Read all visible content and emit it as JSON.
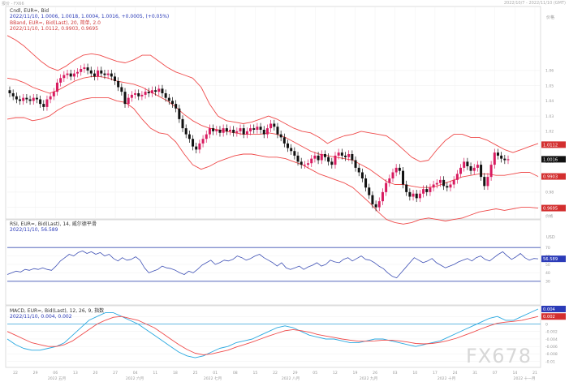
{
  "window": {
    "top_left_label": "报价 - FX66",
    "top_right_label": "2022/10/7 - 2022/11/10 (GMT)"
  },
  "price_panel": {
    "title": "Cndl, EUR=, Bid",
    "ohlc": "2022/11/10, 1.0006, 1.0018, 1.0004, 1.0016, +0.0005, (+0.05%)",
    "bband_title": "BBand, EUR=, Bid(Last), 20, 简单, 2.0",
    "bband_values": "2022/11/10, 1.0112, 0.9903, 0.9695",
    "price_unit": "价格",
    "yticks": [
      "1.06",
      "1.05",
      "1.04",
      "1.03",
      "1.02",
      "1.01",
      "1.00",
      "0.99",
      "0.98",
      "0.97"
    ],
    "badges": [
      {
        "value": "1.0112",
        "color": "#d32f2f"
      },
      {
        "value": "1.0016",
        "color": "#111111"
      },
      {
        "value": "0.9903",
        "color": "#d32f2f"
      },
      {
        "value": "0.9695",
        "color": "#d32f2f"
      }
    ],
    "bottom_tag": "价格"
  },
  "rsi_panel": {
    "title": "RSI, EUR=, Bid(Last), 14, 威尔德平滑",
    "value": "2022/11/10, 56.589",
    "unit": "USD",
    "yticks": [
      "70",
      "60",
      "50",
      "40",
      "30"
    ],
    "badge": {
      "value": "56.589",
      "color": "#2b3bb8"
    }
  },
  "macd_panel": {
    "title": "MACD, EUR=, Bid(Last), 12, 26, 9, 指数",
    "value": "2022/11/10, 0.004, 0.002",
    "yticks": [
      "0.002",
      "0",
      "-0.002",
      "-0.004",
      "-0.006",
      "-0.008",
      "-0.01"
    ],
    "badges": [
      {
        "value": "0.004",
        "color": "#2b3bb8"
      },
      {
        "value": "0.002",
        "color": "#d32f2f"
      }
    ]
  },
  "x_axis": {
    "days": [
      "22",
      "29",
      "06",
      "13",
      "20",
      "27",
      "04",
      "11",
      "18",
      "25",
      "01",
      "08",
      "15",
      "22",
      "29",
      "05",
      "12",
      "19",
      "26",
      "03",
      "10",
      "17",
      "24",
      "31",
      "07",
      "14",
      "21"
    ],
    "months": [
      "2022 五月",
      "2022 六月",
      "2022 七月",
      "2022 八月",
      "2022 九月",
      "2022 十月",
      "2022 十一月"
    ]
  },
  "watermark": "FX678",
  "colors": {
    "bull": "#d81b60",
    "bear": "#111111",
    "bband": "#ef4b4b",
    "rsi_line": "#3f51b5",
    "rsi_levels": "#3f51b5",
    "macd_line": "#29a8e0",
    "signal_line": "#ef4b4b"
  },
  "chart_data": {
    "type": "candlestick",
    "title": "Cndl, EUR=, Bid",
    "closes": [
      1.045,
      1.043,
      1.041,
      1.04,
      1.042,
      1.041,
      1.04,
      1.042,
      1.041,
      1.038,
      1.036,
      1.041,
      1.043,
      1.046,
      1.052,
      1.055,
      1.057,
      1.058,
      1.056,
      1.058,
      1.059,
      1.061,
      1.062,
      1.06,
      1.058,
      1.056,
      1.06,
      1.058,
      1.057,
      1.058,
      1.056,
      1.053,
      1.049,
      1.046,
      1.038,
      1.042,
      1.044,
      1.045,
      1.043,
      1.044,
      1.046,
      1.045,
      1.047,
      1.046,
      1.048,
      1.045,
      1.042,
      1.04,
      1.038,
      1.035,
      1.028,
      1.022,
      1.018,
      1.015,
      1.01,
      1.008,
      1.012,
      1.015,
      1.018,
      1.022,
      1.02,
      1.021,
      1.019,
      1.022,
      1.02,
      1.021,
      1.019,
      1.02,
      1.022,
      1.018,
      1.02,
      1.022,
      1.021,
      1.023,
      1.021,
      1.018,
      1.022,
      1.025,
      1.023,
      1.018,
      1.016,
      1.012,
      1.009,
      1.007,
      1.004,
      1.0,
      0.998,
      0.998,
      0.999,
      1.002,
      1.004,
      1.001,
      1.005,
      1.003,
      1.0,
      0.998,
      1.004,
      1.006,
      1.004,
      1.003,
      1.005,
      1.001,
      0.996,
      0.993,
      0.989,
      0.983,
      0.978,
      0.972,
      0.97,
      0.974,
      0.98,
      0.986,
      0.989,
      0.993,
      0.996,
      0.994,
      0.985,
      0.98,
      0.977,
      0.979,
      0.976,
      0.979,
      0.982,
      0.98,
      0.983,
      0.985,
      0.986,
      0.988,
      0.984,
      0.983,
      0.985,
      0.988,
      0.992,
      0.996,
      1.0,
      0.997,
      0.994,
      0.996,
      0.998,
      0.99,
      0.984,
      0.99,
      0.998,
      1.006,
      1.004,
      1.002,
      1.001,
      1.0016
    ],
    "bb_upper": [
      1.083,
      1.08,
      1.076,
      1.071,
      1.066,
      1.062,
      1.06,
      1.063,
      1.067,
      1.07,
      1.071,
      1.07,
      1.068,
      1.066,
      1.065,
      1.067,
      1.07,
      1.07,
      1.066,
      1.062,
      1.059,
      1.057,
      1.055,
      1.049,
      1.038,
      1.03,
      1.027,
      1.026,
      1.025,
      1.026,
      1.028,
      1.03,
      1.028,
      1.025,
      1.022,
      1.02,
      1.019,
      1.016,
      1.012,
      1.015,
      1.017,
      1.018,
      1.02,
      1.019,
      1.018,
      1.017,
      1.013,
      1.008,
      1.003,
      1.0,
      1.001,
      1.008,
      1.014,
      1.018,
      1.018,
      1.016,
      1.016,
      1.014,
      1.011,
      1.008,
      1.006,
      1.008,
      1.01,
      1.012
    ],
    "bb_mid": [
      1.055,
      1.054,
      1.052,
      1.049,
      1.047,
      1.045,
      1.047,
      1.05,
      1.053,
      1.055,
      1.056,
      1.056,
      1.055,
      1.053,
      1.052,
      1.051,
      1.049,
      1.046,
      1.043,
      1.04,
      1.036,
      1.031,
      1.027,
      1.024,
      1.022,
      1.021,
      1.02,
      1.019,
      1.018,
      1.018,
      1.018,
      1.019,
      1.018,
      1.016,
      1.013,
      1.01,
      1.007,
      1.005,
      1.004,
      1.003,
      1.002,
      1.001,
      0.998,
      0.995,
      0.991,
      0.987,
      0.985,
      0.985,
      0.984,
      0.983,
      0.983,
      0.984,
      0.986,
      0.988,
      0.99,
      0.991,
      0.992,
      0.992,
      0.991,
      0.991,
      0.992,
      0.993,
      0.993,
      0.9903
    ],
    "bb_lower": [
      1.028,
      1.029,
      1.029,
      1.027,
      1.028,
      1.03,
      1.034,
      1.037,
      1.039,
      1.041,
      1.042,
      1.042,
      1.042,
      1.04,
      1.039,
      1.035,
      1.028,
      1.022,
      1.019,
      1.018,
      1.013,
      1.005,
      0.998,
      0.995,
      0.997,
      1.0,
      1.002,
      1.004,
      1.005,
      1.005,
      1.004,
      1.003,
      1.003,
      1.002,
      1.0,
      0.998,
      0.995,
      0.992,
      0.99,
      0.988,
      0.986,
      0.983,
      0.978,
      0.973,
      0.967,
      0.962,
      0.96,
      0.959,
      0.96,
      0.962,
      0.963,
      0.962,
      0.961,
      0.962,
      0.963,
      0.965,
      0.967,
      0.968,
      0.969,
      0.968,
      0.969,
      0.97,
      0.97,
      0.9695
    ],
    "ylim": [
      0.965,
      1.085
    ],
    "rsi": [
      38,
      40,
      42,
      41,
      44,
      43,
      45,
      44,
      46,
      44,
      43,
      48,
      54,
      58,
      62,
      60,
      64,
      66,
      63,
      65,
      62,
      64,
      60,
      62,
      57,
      54,
      58,
      55,
      56,
      59,
      55,
      46,
      40,
      42,
      44,
      48,
      46,
      45,
      43,
      40,
      38,
      42,
      40,
      44,
      49,
      52,
      55,
      50,
      52,
      55,
      54,
      56,
      60,
      58,
      55,
      57,
      60,
      62,
      58,
      55,
      52,
      48,
      52,
      46,
      44,
      46,
      48,
      44,
      47,
      49,
      52,
      48,
      50,
      55,
      53,
      52,
      56,
      58,
      54,
      57,
      60,
      56,
      55,
      52,
      48,
      45,
      40,
      36,
      34,
      40,
      46,
      52,
      58,
      55,
      52,
      54,
      57,
      52,
      49,
      46,
      48,
      50,
      53,
      55,
      57,
      54,
      58,
      60,
      56,
      54,
      58,
      62,
      65,
      60,
      56,
      59,
      63,
      58,
      55,
      57,
      56.589
    ],
    "rsi_levels": [
      70,
      30
    ],
    "rsi_ylim": [
      25,
      75
    ],
    "macd": [
      -0.004,
      -0.0055,
      -0.0065,
      -0.007,
      -0.007,
      -0.0065,
      -0.006,
      -0.005,
      -0.003,
      -0.001,
      0.001,
      0.002,
      0.003,
      0.003,
      0.002,
      0.001,
      0.0,
      -0.0015,
      -0.003,
      -0.0045,
      -0.006,
      -0.0075,
      -0.0085,
      -0.009,
      -0.0085,
      -0.0075,
      -0.0065,
      -0.006,
      -0.005,
      -0.0045,
      -0.004,
      -0.003,
      -0.002,
      -0.001,
      -0.0005,
      -0.001,
      -0.002,
      -0.003,
      -0.0035,
      -0.004,
      -0.004,
      -0.0045,
      -0.005,
      -0.005,
      -0.0045,
      -0.004,
      -0.004,
      -0.0045,
      -0.005,
      -0.0055,
      -0.006,
      -0.0055,
      -0.005,
      -0.0045,
      -0.0035,
      -0.0025,
      -0.0015,
      -0.0005,
      0.0005,
      0.0015,
      0.002,
      0.001,
      0.001,
      0.002,
      0.003,
      0.004
    ],
    "signal": [
      -0.002,
      -0.003,
      -0.004,
      -0.005,
      -0.0055,
      -0.006,
      -0.006,
      -0.0055,
      -0.0045,
      -0.003,
      -0.0015,
      0.0,
      0.001,
      0.0018,
      0.002,
      0.0015,
      0.001,
      0.0,
      -0.001,
      -0.0025,
      -0.004,
      -0.0055,
      -0.0068,
      -0.0078,
      -0.0082,
      -0.008,
      -0.0075,
      -0.007,
      -0.0062,
      -0.0055,
      -0.0048,
      -0.004,
      -0.0032,
      -0.0025,
      -0.0018,
      -0.0015,
      -0.0018,
      -0.0022,
      -0.0028,
      -0.0032,
      -0.0036,
      -0.004,
      -0.0043,
      -0.0046,
      -0.0046,
      -0.0045,
      -0.0043,
      -0.0043,
      -0.0045,
      -0.0048,
      -0.0052,
      -0.0053,
      -0.0052,
      -0.0049,
      -0.0044,
      -0.0038,
      -0.003,
      -0.0022,
      -0.0013,
      -0.0005,
      0.0002,
      0.0005,
      0.0007,
      0.001,
      0.0015,
      0.002
    ],
    "macd_ylim": [
      -0.0105,
      0.004
    ]
  }
}
